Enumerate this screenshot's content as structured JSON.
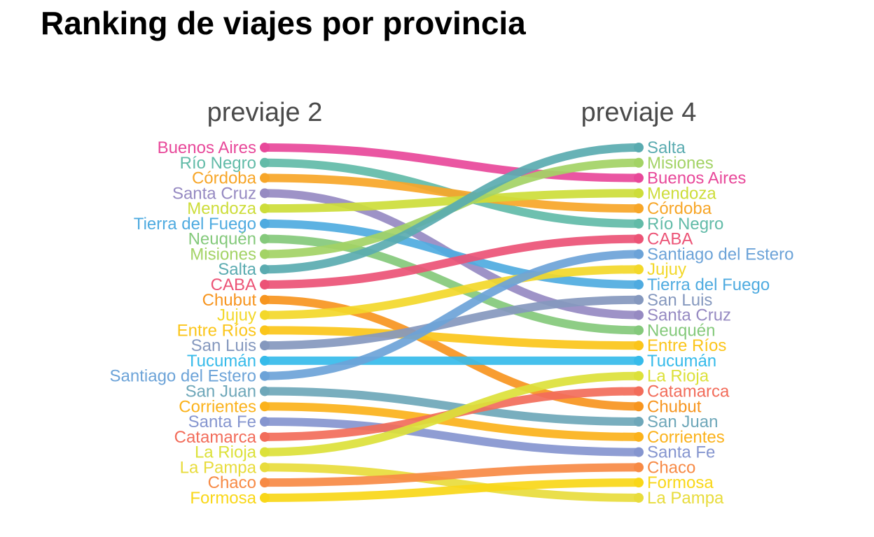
{
  "chart_data": {
    "type": "bump",
    "title": "Ranking de viajes por provincia",
    "columns": [
      "previaje 2",
      "previaje 4"
    ],
    "series": [
      {
        "name": "Buenos Aires",
        "ranks": [
          1,
          3
        ],
        "color": "#e8489a"
      },
      {
        "name": "Río Negro",
        "ranks": [
          2,
          6
        ],
        "color": "#62bba8"
      },
      {
        "name": "Córdoba",
        "ranks": [
          3,
          5
        ],
        "color": "#f7a628"
      },
      {
        "name": "Santa Cruz",
        "ranks": [
          4,
          12
        ],
        "color": "#968ac2"
      },
      {
        "name": "Mendoza",
        "ranks": [
          5,
          4
        ],
        "color": "#cddd3a"
      },
      {
        "name": "Tierra del Fuego",
        "ranks": [
          6,
          10
        ],
        "color": "#4fabe0"
      },
      {
        "name": "Neuquén",
        "ranks": [
          7,
          13
        ],
        "color": "#84c97b"
      },
      {
        "name": "Misiones",
        "ranks": [
          8,
          2
        ],
        "color": "#a3d365"
      },
      {
        "name": "Salta",
        "ranks": [
          9,
          1
        ],
        "color": "#5aabb0"
      },
      {
        "name": "CABA",
        "ranks": [
          10,
          7
        ],
        "color": "#ec5376"
      },
      {
        "name": "Chubut",
        "ranks": [
          11,
          18
        ],
        "color": "#f7951f"
      },
      {
        "name": "Jujuy",
        "ranks": [
          12,
          9
        ],
        "color": "#f3d82a"
      },
      {
        "name": "Entre Ríos",
        "ranks": [
          13,
          14
        ],
        "color": "#fbc51a"
      },
      {
        "name": "San Luis",
        "ranks": [
          14,
          11
        ],
        "color": "#8598be"
      },
      {
        "name": "Tucumán",
        "ranks": [
          15,
          15
        ],
        "color": "#36bbea"
      },
      {
        "name": "Santiago del Estero",
        "ranks": [
          16,
          8
        ],
        "color": "#6ca3d8"
      },
      {
        "name": "San Juan",
        "ranks": [
          17,
          19
        ],
        "color": "#6ea7b9"
      },
      {
        "name": "Corrientes",
        "ranks": [
          18,
          20
        ],
        "color": "#fbb21b"
      },
      {
        "name": "Santa Fe",
        "ranks": [
          19,
          21
        ],
        "color": "#8595cf"
      },
      {
        "name": "Catamarca",
        "ranks": [
          20,
          17
        ],
        "color": "#f26c5a"
      },
      {
        "name": "La Rioja",
        "ranks": [
          21,
          16
        ],
        "color": "#dce13a"
      },
      {
        "name": "La Pampa",
        "ranks": [
          22,
          24
        ],
        "color": "#e8dc3c"
      },
      {
        "name": "Chaco",
        "ranks": [
          23,
          22
        ],
        "color": "#f78a45"
      },
      {
        "name": "Formosa",
        "ranks": [
          24,
          23
        ],
        "color": "#f9d718"
      }
    ]
  }
}
